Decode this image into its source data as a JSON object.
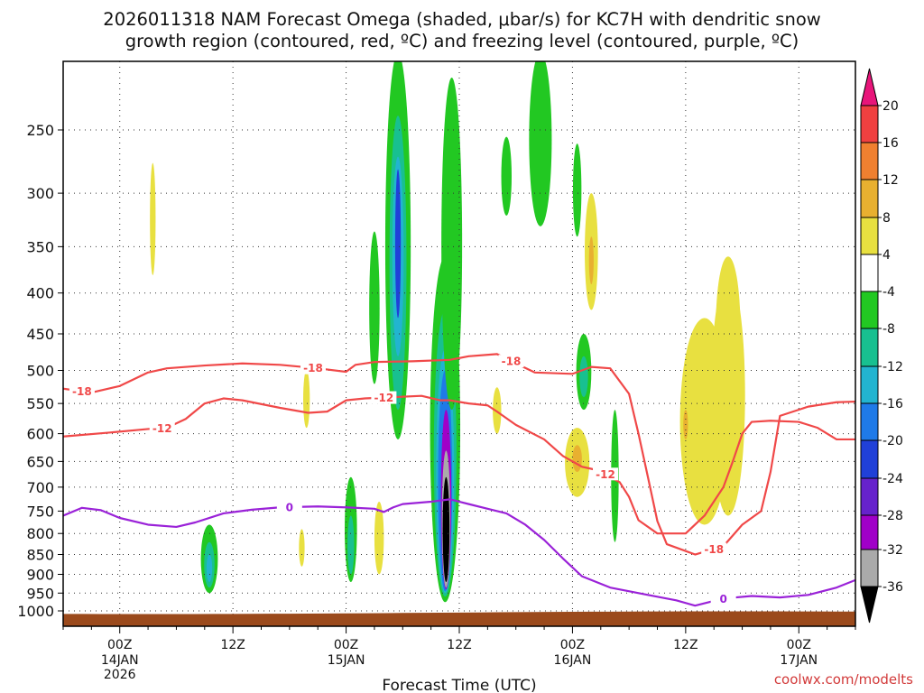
{
  "title": {
    "line1": "2026011318 NAM Forecast Omega (shaded, μbar/s) for KC7H with dendritic snow",
    "line2": "growth region (contoured, red, ºC) and freezing level (contoured, purple, ºC)"
  },
  "credit": "coolwx.com/modelts",
  "chart_data": {
    "type": "heatmap",
    "title": "2026011318 NAM Forecast Omega (shaded, μbar/s) for KC7H with dendritic snow growth region (contoured, red, ºC) and freezing level (contoured, purple, ºC)",
    "xlabel": "Forecast Time (UTC)",
    "ylabel": "",
    "x_ticks": [
      {
        "hour": 6,
        "label": "00Z",
        "sub1": "14JAN",
        "sub2": "2026"
      },
      {
        "hour": 18,
        "label": "12Z",
        "sub1": "",
        "sub2": ""
      },
      {
        "hour": 30,
        "label": "00Z",
        "sub1": "15JAN",
        "sub2": ""
      },
      {
        "hour": 42,
        "label": "12Z",
        "sub1": "",
        "sub2": ""
      },
      {
        "hour": 54,
        "label": "00Z",
        "sub1": "16JAN",
        "sub2": ""
      },
      {
        "hour": 66,
        "label": "12Z",
        "sub1": "",
        "sub2": ""
      },
      {
        "hour": 78,
        "label": "00Z",
        "sub1": "17JAN",
        "sub2": ""
      }
    ],
    "xlim_hours": [
      0,
      84
    ],
    "y_ticks": [
      250,
      300,
      350,
      400,
      450,
      500,
      550,
      600,
      650,
      700,
      750,
      800,
      850,
      900,
      950,
      1000
    ],
    "ylim_hPa": [
      200,
      1020
    ],
    "y_scale": "log",
    "grid": true,
    "colorbar": {
      "ticks": [
        "20",
        "16",
        "12",
        "8",
        "4",
        "-4",
        "-8",
        "-12",
        "-16",
        "-20",
        "-24",
        "-28",
        "-32",
        "-36"
      ],
      "colors": {
        "above20": "#e8157a",
        "c16_20": "#f04040",
        "c12_16": "#f08030",
        "c8_12": "#e8b030",
        "c4_8": "#e8e040",
        "neutral": "#ffffff",
        "m4_m8": "#22c822",
        "m8_m12": "#18c090",
        "m12_m16": "#22b4d0",
        "m16_m20": "#1f7ae8",
        "m20_m24": "#2040d8",
        "m24_m28": "#6622cc",
        "m28_m32": "#a000c8",
        "m32_m36": "#aaaaaa",
        "below_m36": "#000000"
      }
    },
    "contours": [
      {
        "name": "-18",
        "color": "#f04848",
        "points": [
          [
            0,
            527
          ],
          [
            3,
            533
          ],
          [
            6,
            523
          ],
          [
            9,
            503
          ],
          [
            11,
            497
          ],
          [
            15,
            493
          ],
          [
            19,
            490
          ],
          [
            23,
            492
          ],
          [
            27,
            497
          ],
          [
            30,
            502
          ],
          [
            31,
            492
          ],
          [
            33,
            488
          ],
          [
            37,
            487
          ],
          [
            41,
            485
          ],
          [
            43,
            480
          ],
          [
            46,
            477
          ],
          [
            48,
            490
          ],
          [
            50,
            503
          ],
          [
            54,
            505
          ],
          [
            56,
            495
          ],
          [
            58,
            497
          ],
          [
            60,
            535
          ],
          [
            61,
            600
          ],
          [
            62,
            680
          ],
          [
            63,
            772
          ],
          [
            64,
            825
          ],
          [
            67,
            850
          ],
          [
            70,
            830
          ],
          [
            72,
            780
          ],
          [
            74,
            750
          ],
          [
            75,
            670
          ],
          [
            76,
            570
          ],
          [
            79,
            555
          ],
          [
            82,
            548
          ],
          [
            84,
            547
          ]
        ],
        "labels": [
          {
            "hour": 2,
            "text": "-18"
          },
          {
            "hour": 26.5,
            "text": "-18"
          },
          {
            "hour": 47.5,
            "text": "-18"
          },
          {
            "hour": 69,
            "text": "-18"
          }
        ]
      },
      {
        "name": "-12",
        "color": "#f04848",
        "points": [
          [
            0,
            605
          ],
          [
            5,
            598
          ],
          [
            9,
            592
          ],
          [
            11,
            590
          ],
          [
            13,
            575
          ],
          [
            15,
            550
          ],
          [
            17,
            542
          ],
          [
            19,
            545
          ],
          [
            23,
            557
          ],
          [
            26,
            565
          ],
          [
            28,
            563
          ],
          [
            30,
            545
          ],
          [
            32,
            542
          ],
          [
            35,
            540
          ],
          [
            38,
            538
          ],
          [
            40,
            545
          ],
          [
            41,
            545
          ],
          [
            43,
            550
          ],
          [
            45,
            553
          ],
          [
            46,
            563
          ],
          [
            48,
            585
          ],
          [
            51,
            610
          ],
          [
            53,
            640
          ],
          [
            55,
            660
          ],
          [
            57,
            668
          ],
          [
            58,
            680
          ],
          [
            59,
            690
          ],
          [
            60,
            720
          ],
          [
            61,
            770
          ],
          [
            63,
            800
          ],
          [
            66,
            800
          ],
          [
            68,
            760
          ],
          [
            70,
            700
          ],
          [
            71,
            650
          ],
          [
            72,
            600
          ],
          [
            73,
            580
          ],
          [
            75,
            578
          ],
          [
            78,
            580
          ],
          [
            80,
            590
          ],
          [
            82,
            610
          ],
          [
            84,
            610
          ]
        ],
        "labels": [
          {
            "hour": 10.5,
            "text": "-12"
          },
          {
            "hour": 34,
            "text": "-12"
          },
          {
            "hour": 57.5,
            "text": "-12"
          }
        ]
      },
      {
        "name": "0",
        "color": "#9a22d8",
        "points": [
          [
            0,
            760
          ],
          [
            2,
            743
          ],
          [
            4,
            748
          ],
          [
            6,
            765
          ],
          [
            9,
            780
          ],
          [
            12,
            785
          ],
          [
            14,
            775
          ],
          [
            17,
            755
          ],
          [
            20,
            747
          ],
          [
            23,
            742
          ],
          [
            27,
            740
          ],
          [
            30,
            742
          ],
          [
            33,
            745
          ],
          [
            34,
            752
          ],
          [
            35,
            742
          ],
          [
            36,
            735
          ],
          [
            39,
            730
          ],
          [
            41,
            725
          ],
          [
            43,
            735
          ],
          [
            45,
            745
          ],
          [
            47,
            755
          ],
          [
            49,
            780
          ],
          [
            51,
            815
          ],
          [
            53,
            860
          ],
          [
            55,
            905
          ],
          [
            58,
            935
          ],
          [
            62,
            955
          ],
          [
            65,
            970
          ],
          [
            67,
            985
          ],
          [
            70,
            965
          ],
          [
            73,
            958
          ],
          [
            76,
            962
          ],
          [
            79,
            955
          ],
          [
            82,
            935
          ],
          [
            84,
            915
          ]
        ],
        "labels": [
          {
            "hour": 24,
            "text": "0"
          },
          {
            "hour": 70,
            "text": "0"
          }
        ]
      }
    ],
    "terrain_top_hPa": 1000
  }
}
